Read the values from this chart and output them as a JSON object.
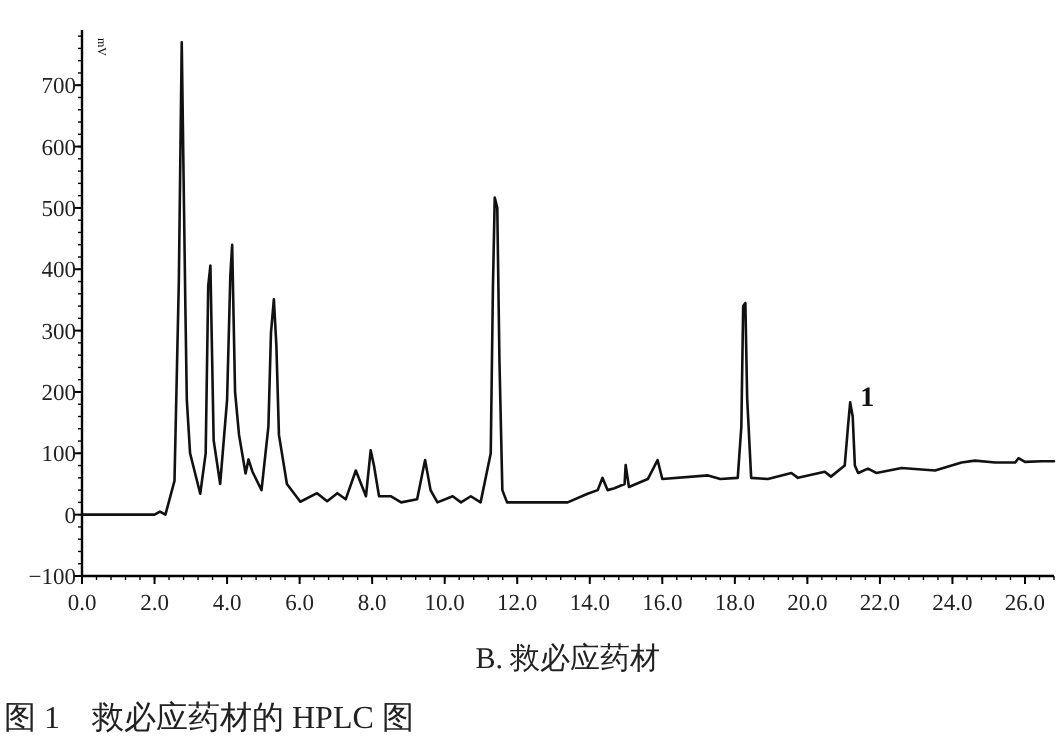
{
  "chart_data": {
    "type": "line",
    "xlabel": "B. 救必应药材",
    "ylabel": "mV",
    "color": "#111111",
    "x": [
      0,
      2.0,
      2.15,
      2.3,
      2.55,
      2.67,
      2.75,
      2.85,
      2.89,
      2.98,
      3.26,
      3.41,
      3.48,
      3.54,
      3.63,
      3.81,
      4.0,
      4.09,
      4.14,
      4.22,
      4.33,
      4.51,
      4.59,
      4.7,
      4.95,
      5.14,
      5.21,
      5.29,
      5.36,
      5.43,
      5.65,
      6.02,
      6.48,
      6.76,
      7.04,
      7.27,
      7.55,
      7.83,
      7.96,
      8.05,
      8.19,
      8.51,
      8.8,
      9.24,
      9.46,
      9.61,
      9.8,
      10.22,
      10.45,
      10.72,
      10.99,
      11.27,
      11.33,
      11.38,
      11.45,
      11.51,
      11.59,
      11.72,
      13.39,
      13.94,
      14.22,
      14.35,
      14.49,
      14.68,
      14.96,
      14.99,
      15.08,
      15.6,
      15.87,
      16.0,
      17.26,
      17.6,
      18.08,
      18.18,
      18.23,
      18.29,
      18.34,
      18.45,
      18.91,
      19.56,
      19.74,
      20.48,
      20.65,
      21.03,
      21.12,
      21.18,
      21.25,
      21.31,
      21.4,
      21.67,
      21.9,
      22.6,
      23.52,
      24.25,
      24.62,
      25.18,
      25.73,
      25.82,
      26.0,
      26.46,
      26.8
    ],
    "values": [
      0,
      0,
      5,
      0,
      55,
      380,
      770,
      340,
      187,
      100,
      34,
      100,
      373,
      406,
      121,
      50,
      187,
      390,
      440,
      200,
      130,
      67,
      90,
      70,
      40,
      144,
      296,
      351,
      275,
      130,
      50,
      21,
      35,
      22,
      35,
      25,
      72,
      30,
      105,
      80,
      30,
      30,
      20,
      25,
      89,
      40,
      20,
      30,
      20,
      30,
      20,
      100,
      370,
      517,
      500,
      250,
      40,
      20,
      20,
      34,
      40,
      60,
      40,
      43,
      50,
      81,
      45,
      58,
      89,
      58,
      64,
      58,
      60,
      144,
      340,
      345,
      190,
      60,
      58,
      68,
      60,
      70,
      62,
      80,
      144,
      183,
      160,
      80,
      68,
      75,
      68,
      76,
      72,
      85,
      88,
      85,
      85,
      92,
      86,
      87,
      87
    ],
    "xlim": [
      0,
      26.8
    ],
    "ylim": [
      -100,
      790
    ],
    "xticks": [
      {
        "value": 0,
        "label": "0.0"
      },
      {
        "value": 2,
        "label": "2.0"
      },
      {
        "value": 4,
        "label": "4.0"
      },
      {
        "value": 6,
        "label": "6.0"
      },
      {
        "value": 8,
        "label": "8.0"
      },
      {
        "value": 10,
        "label": "10.0"
      },
      {
        "value": 12,
        "label": "12.0"
      },
      {
        "value": 14,
        "label": "14.0"
      },
      {
        "value": 16,
        "label": "16.0"
      },
      {
        "value": 18,
        "label": "18.0"
      },
      {
        "value": 20,
        "label": "20.0"
      },
      {
        "value": 22,
        "label": "22.0"
      },
      {
        "value": 24,
        "label": "24.0"
      },
      {
        "value": 26,
        "label": "26.0"
      }
    ],
    "yticks": [
      {
        "value": -100,
        "label": "−100"
      },
      0,
      100,
      200,
      300,
      400,
      500,
      600,
      700
    ],
    "annotations": [
      {
        "text": "1",
        "x": 21.18,
        "y": 183
      },
      "图 1　救必应药材的 HPLC 图"
    ]
  }
}
